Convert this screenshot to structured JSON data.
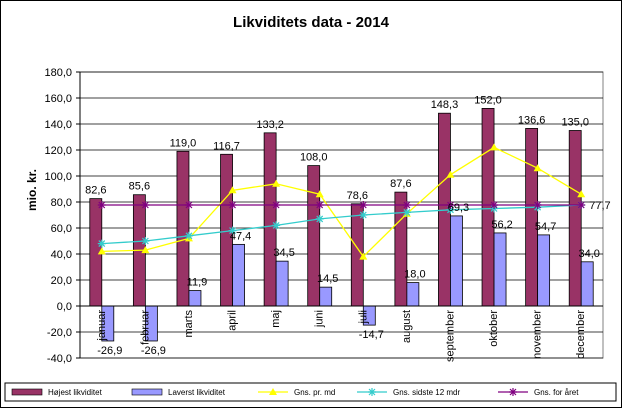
{
  "chart_data": {
    "type": "bar",
    "title": "Likviditets data - 2014",
    "ylabel": "mio. kr.",
    "xlabel": "",
    "ylim": [
      -40,
      180
    ],
    "yticks": [
      "-40,0",
      "-20,0",
      "0,0",
      "20,0",
      "40,0",
      "60,0",
      "80,0",
      "100,0",
      "120,0",
      "140,0",
      "160,0",
      "180,0"
    ],
    "categories": [
      "januar",
      "februar",
      "marts",
      "april",
      "maj",
      "juni",
      "juli",
      "august",
      "september",
      "oktober",
      "november",
      "december"
    ],
    "grid": "horizontal",
    "legend_position": "bottom",
    "series": [
      {
        "name": "Højest likviditet",
        "kind": "bar",
        "color": "#993366",
        "values": [
          82.6,
          85.6,
          119.0,
          116.7,
          133.2,
          108.0,
          78.6,
          87.6,
          148.3,
          152.0,
          136.6,
          135.0
        ],
        "labels": [
          "82,6",
          "85,6",
          "119,0",
          "116,7",
          "133,2",
          "108,0",
          "78,6",
          "87,6",
          "148,3",
          "152,0",
          "136,6",
          "135,0"
        ]
      },
      {
        "name": "Laverst likviditet",
        "kind": "bar",
        "color": "#9999FF",
        "values": [
          -26.9,
          -26.9,
          11.9,
          47.4,
          34.5,
          14.5,
          -14.7,
          18.0,
          69.3,
          56.2,
          54.7,
          34.0
        ],
        "labels": [
          "-26,9",
          "-26,9",
          "11,9",
          "47,4",
          "34,5",
          "14,5",
          "-14,7",
          "18,0",
          "69,3",
          "56,2",
          "54,7",
          "34,0"
        ]
      },
      {
        "name": "Gns. pr. md",
        "kind": "line",
        "color": "#FFFF00",
        "marker": "triangle",
        "values": [
          42,
          43,
          52,
          89,
          94,
          86,
          38,
          71,
          101,
          122,
          106,
          86
        ]
      },
      {
        "name": "Gns. sidste 12 mdr",
        "kind": "line",
        "color": "#33CCCC",
        "marker": "star",
        "values": [
          48,
          50,
          54,
          58,
          62,
          67,
          70,
          72,
          74,
          75,
          76,
          77.7
        ]
      },
      {
        "name": "Gns. for året",
        "kind": "line",
        "color": "#800080",
        "marker": "star",
        "values": [
          77.7,
          77.7,
          77.7,
          77.7,
          77.7,
          77.7,
          77.7,
          77.7,
          77.7,
          77.7,
          77.7,
          77.7
        ],
        "end_label": "77,7"
      }
    ]
  }
}
